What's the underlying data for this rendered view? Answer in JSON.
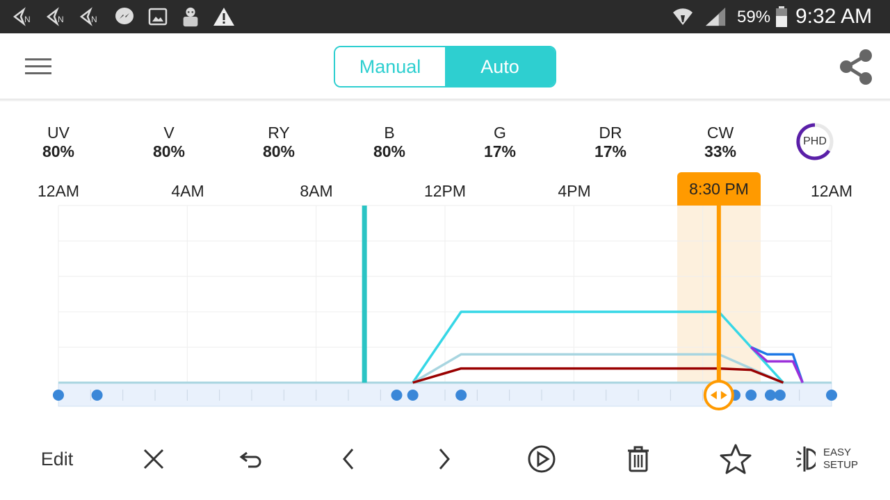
{
  "status_bar": {
    "notification_icons": [
      "notify-a-icon",
      "notify-b-icon",
      "notify-c-icon",
      "messenger-icon",
      "gallery-icon",
      "avatar-app-icon",
      "warning-icon"
    ],
    "battery_percent": "59%",
    "time": "9:32 AM"
  },
  "header": {
    "mode_manual": "Manual",
    "mode_auto": "Auto",
    "selected_mode": "Auto",
    "menu_icon": "hamburger-menu-icon",
    "share_icon": "share-icon"
  },
  "channels": [
    {
      "name": "UV",
      "value": "80%"
    },
    {
      "name": "V",
      "value": "80%"
    },
    {
      "name": "RY",
      "value": "80%"
    },
    {
      "name": "B",
      "value": "80%"
    },
    {
      "name": "G",
      "value": "17%"
    },
    {
      "name": "DR",
      "value": "17%"
    },
    {
      "name": "CW",
      "value": "33%"
    }
  ],
  "phd": {
    "label": "PHD",
    "color": "#5a1fa8"
  },
  "time_axis": [
    "12AM",
    "4AM",
    "8AM",
    "12PM",
    "4PM",
    "8:30 PM",
    "12AM"
  ],
  "cursor": {
    "time_label": "8:30 PM",
    "hour": 20.5,
    "color": "#ff9a00"
  },
  "chart_data": {
    "type": "line",
    "x_unit": "hour of day",
    "xlim": [
      0,
      24
    ],
    "now_marker_hour": 9.5,
    "series": [
      {
        "color": "#36d7e6",
        "points": [
          [
            11,
            0
          ],
          [
            12.5,
            10
          ],
          [
            20.5,
            10
          ],
          [
            21.5,
            5
          ],
          [
            22.5,
            0
          ]
        ]
      },
      {
        "color": "#a8d5e0",
        "points": [
          [
            11,
            0
          ],
          [
            12.5,
            4
          ],
          [
            20.5,
            4
          ],
          [
            21.5,
            2
          ],
          [
            22.5,
            0
          ]
        ]
      },
      {
        "color": "#990000",
        "points": [
          [
            11,
            0
          ],
          [
            12.5,
            2
          ],
          [
            20.5,
            2
          ],
          [
            21.5,
            1.8
          ],
          [
            22.5,
            0
          ]
        ]
      },
      {
        "color": "#1e78e6",
        "points": [
          [
            21.5,
            5
          ],
          [
            22,
            4
          ],
          [
            22.8,
            4
          ],
          [
            23.1,
            0
          ]
        ]
      },
      {
        "color": "#9b30d9",
        "points": [
          [
            21.5,
            5
          ],
          [
            22,
            3
          ],
          [
            22.8,
            3
          ],
          [
            23.1,
            0
          ]
        ]
      }
    ],
    "ylim": [
      0,
      25
    ],
    "keyframe_hours": [
      0,
      1.2,
      10.5,
      11,
      12.5,
      21,
      21.5,
      22.1,
      22.4,
      24
    ],
    "colors": {
      "accent": "#2ecfd0",
      "now_marker": "#2ac4c4",
      "keyframe": "#3a87d8"
    }
  },
  "toolbar": {
    "edit_label": "Edit",
    "easy_setup_line1": "EASY",
    "easy_setup_line2": "SETUP",
    "icons": [
      "close-icon",
      "undo-icon",
      "chevron-left-icon",
      "chevron-right-icon",
      "play-icon",
      "trash-icon",
      "star-icon",
      "easy-setup-icon"
    ]
  }
}
